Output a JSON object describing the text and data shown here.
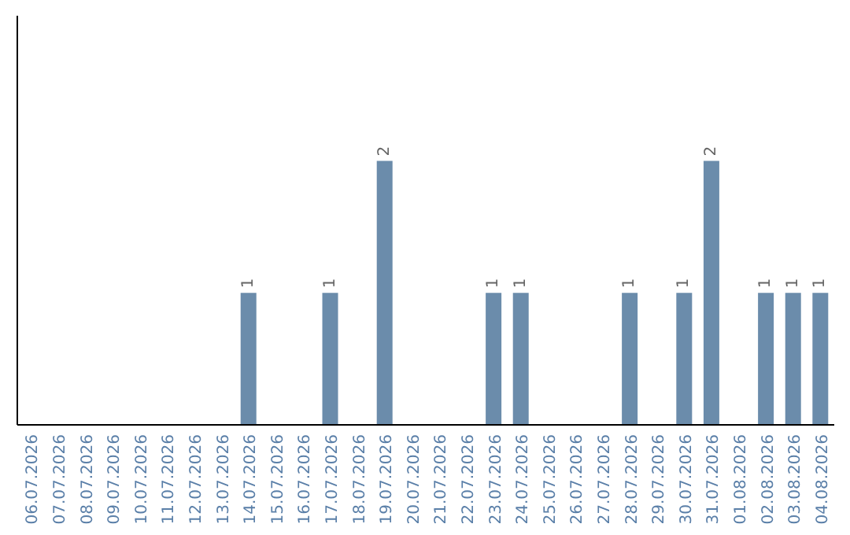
{
  "chart_data": {
    "type": "bar",
    "categories": [
      "06.07.2026",
      "07.07.2026",
      "08.07.2026",
      "09.07.2026",
      "10.07.2026",
      "11.07.2026",
      "12.07.2026",
      "13.07.2026",
      "14.07.2026",
      "15.07.2026",
      "16.07.2026",
      "17.07.2026",
      "18.07.2026",
      "19.07.2026",
      "20.07.2026",
      "21.07.2026",
      "22.07.2026",
      "23.07.2026",
      "24.07.2026",
      "25.07.2026",
      "26.07.2026",
      "27.07.2026",
      "28.07.2026",
      "29.07.2026",
      "30.07.2026",
      "31.07.2026",
      "01.08.2026",
      "02.08.2026",
      "03.08.2026",
      "04.08.2026"
    ],
    "values": [
      0,
      0,
      0,
      0,
      0,
      0,
      0,
      0,
      1,
      0,
      0,
      1,
      0,
      2,
      0,
      0,
      0,
      1,
      1,
      0,
      0,
      0,
      1,
      0,
      1,
      2,
      0,
      1,
      1,
      1
    ],
    "value_labels": [
      null,
      null,
      null,
      null,
      null,
      null,
      null,
      null,
      "1",
      null,
      null,
      "1",
      null,
      "2",
      null,
      null,
      null,
      "1",
      "1",
      null,
      null,
      null,
      "1",
      null,
      "1",
      "2",
      null,
      "1",
      "1",
      "1"
    ],
    "color": "#6b8cab",
    "ylim": [
      0,
      3.1
    ],
    "tick_labels": "x"
  }
}
